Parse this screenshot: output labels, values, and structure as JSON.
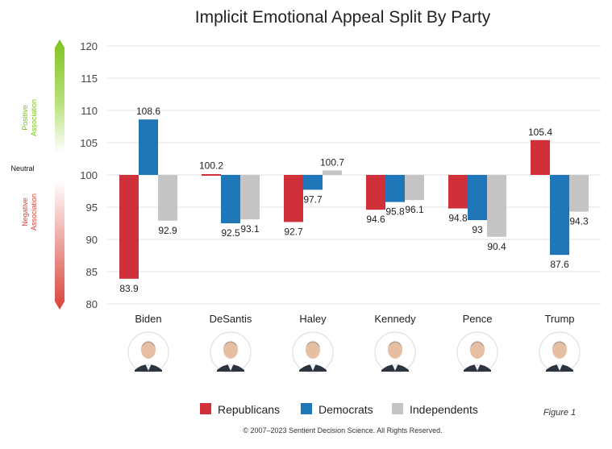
{
  "chart_data": {
    "type": "bar",
    "title": "Implicit Emotional Appeal Split By Party",
    "categories": [
      "Biden",
      "DeSantis",
      "Haley",
      "Kennedy",
      "Pence",
      "Trump"
    ],
    "baseline": 100,
    "ylim": [
      80,
      120
    ],
    "yticks": [
      80,
      85,
      90,
      95,
      100,
      105,
      110,
      115,
      120
    ],
    "grid": true,
    "legend_position": "bottom",
    "series": [
      {
        "name": "Republicans",
        "color": "#d0303a",
        "values": [
          83.9,
          100.2,
          92.7,
          94.6,
          94.8,
          105.4
        ]
      },
      {
        "name": "Democrats",
        "color": "#1f77b9",
        "values": [
          108.6,
          92.5,
          97.7,
          95.8,
          93,
          87.6
        ]
      },
      {
        "name": "Independents",
        "color": "#c4c4c4",
        "values": [
          92.9,
          93.1,
          100.7,
          96.1,
          90.4,
          94.3
        ]
      }
    ],
    "side_scale": {
      "positive_label": "Positive Association",
      "neutral_label": "Neutral",
      "negative_label": "Negative Association",
      "positive_color": "#7dc31e",
      "negative_color": "#d9433b"
    }
  },
  "figure_label": "Figure 1",
  "copyright": "© 2007–2023 Sentient Decision Science. All Rights Reserved."
}
